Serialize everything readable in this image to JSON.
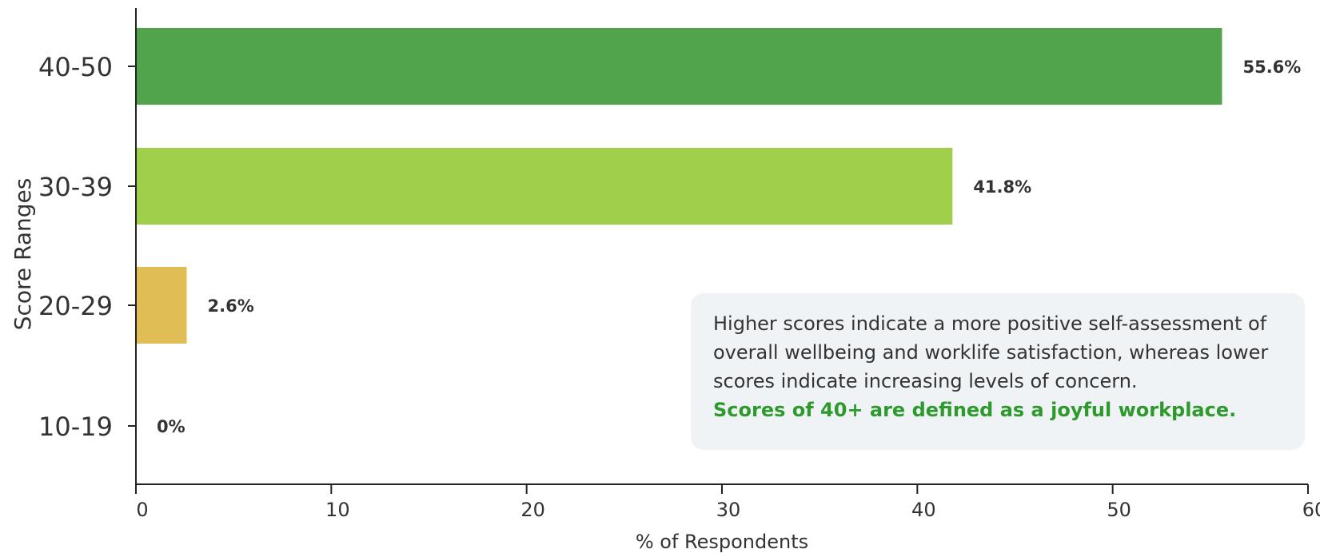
{
  "chart_data": {
    "type": "bar",
    "orientation": "horizontal",
    "categories": [
      "40-50",
      "30-39",
      "20-29",
      "10-19"
    ],
    "values": [
      55.6,
      41.8,
      2.6,
      0
    ],
    "value_labels": [
      "55.6%",
      "41.8%",
      "2.6%",
      "0%"
    ],
    "bar_colors": [
      "#52a44c",
      "#a0cf4b",
      "#e0bd55",
      "#e0bd55"
    ],
    "xlabel": "% of Respondents",
    "ylabel": "Score Ranges",
    "xlim": [
      0,
      60
    ],
    "xticks": [
      0,
      10,
      20,
      30,
      40,
      50,
      60
    ],
    "grid": false,
    "legend": "none"
  },
  "annotation": {
    "text": "Higher scores indicate a more positive self-assessment of overall wellbeing and worklife satisfaction, whereas lower scores indicate increasing levels of concern.",
    "highlight": "Scores of 40+ are defined as a joyful workplace."
  }
}
